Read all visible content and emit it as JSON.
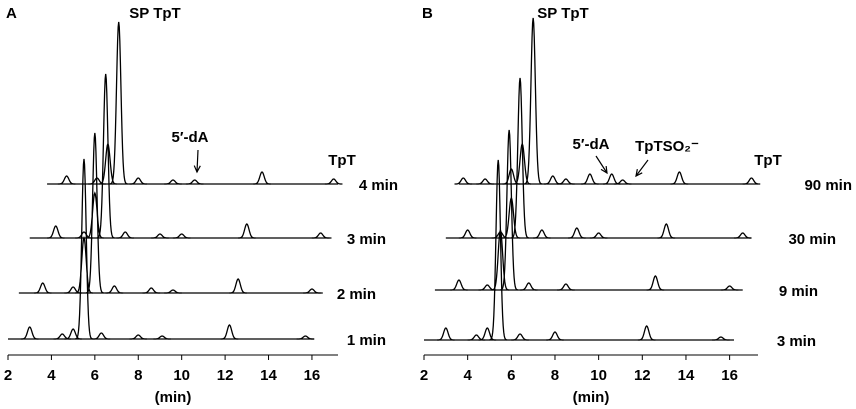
{
  "chart_data": [
    {
      "type": "line",
      "panel": "A",
      "x_label": "(min)",
      "xlim": [
        2,
        17.2
      ],
      "xticks": [
        2,
        4,
        6,
        8,
        10,
        12,
        14,
        16
      ],
      "color": "#000000",
      "annotations": [
        "SP TpT",
        "5′-dA",
        "TpT"
      ],
      "series": [
        {
          "name": "4 min",
          "x": [
            4.7,
            6.1,
            6.6,
            7.1,
            8.0,
            9.6,
            10.6,
            13.7,
            17.0
          ],
          "values": [
            8,
            6,
            40,
            162,
            6,
            4,
            4,
            12,
            5
          ]
        },
        {
          "name": "3 min",
          "x": [
            4.2,
            5.5,
            6.0,
            6.5,
            7.4,
            9.0,
            10.0,
            13.0,
            16.4
          ],
          "values": [
            12,
            6,
            45,
            164,
            6,
            4,
            4,
            14,
            5
          ]
        },
        {
          "name": "2 min",
          "x": [
            3.6,
            5.0,
            5.5,
            6.0,
            6.9,
            8.6,
            9.6,
            12.6,
            16.0
          ],
          "values": [
            10,
            6,
            55,
            160,
            7,
            5,
            3,
            14,
            4
          ]
        },
        {
          "name": "1 min",
          "x": [
            3.0,
            4.5,
            5.0,
            5.5,
            6.3,
            8.0,
            9.1,
            12.2,
            15.7
          ],
          "values": [
            12,
            5,
            10,
            180,
            6,
            4,
            3,
            14,
            3
          ]
        }
      ]
    },
    {
      "type": "line",
      "panel": "B",
      "x_label": "(min)",
      "xlim": [
        2,
        17.3
      ],
      "xticks": [
        2,
        4,
        6,
        8,
        10,
        12,
        14,
        16
      ],
      "color": "#000000",
      "annotations": [
        "SP TpT",
        "5′-dA",
        "TpTSO₂⁻",
        "TpT"
      ],
      "series": [
        {
          "name": "90 min",
          "x": [
            3.8,
            4.8,
            6.0,
            6.5,
            7.0,
            7.9,
            8.5,
            9.6,
            10.6,
            11.1,
            13.7,
            17.0
          ],
          "values": [
            6,
            5,
            15,
            40,
            166,
            8,
            5,
            10,
            10,
            4,
            12,
            6
          ]
        },
        {
          "name": "30 min",
          "x": [
            4.0,
            5.5,
            6.0,
            6.4,
            7.4,
            9.0,
            10.0,
            13.1,
            16.6
          ],
          "values": [
            8,
            6,
            40,
            160,
            8,
            10,
            5,
            14,
            5
          ]
        },
        {
          "name": "9 min",
          "x": [
            3.6,
            4.9,
            5.5,
            5.9,
            6.8,
            8.5,
            12.6,
            16.0
          ],
          "values": [
            10,
            5,
            60,
            160,
            7,
            6,
            14,
            4
          ]
        },
        {
          "name": "3 min",
          "x": [
            3.0,
            4.4,
            4.9,
            5.4,
            6.4,
            8.0,
            12.2,
            15.6
          ],
          "values": [
            12,
            5,
            12,
            180,
            6,
            8,
            14,
            3
          ]
        }
      ]
    }
  ]
}
